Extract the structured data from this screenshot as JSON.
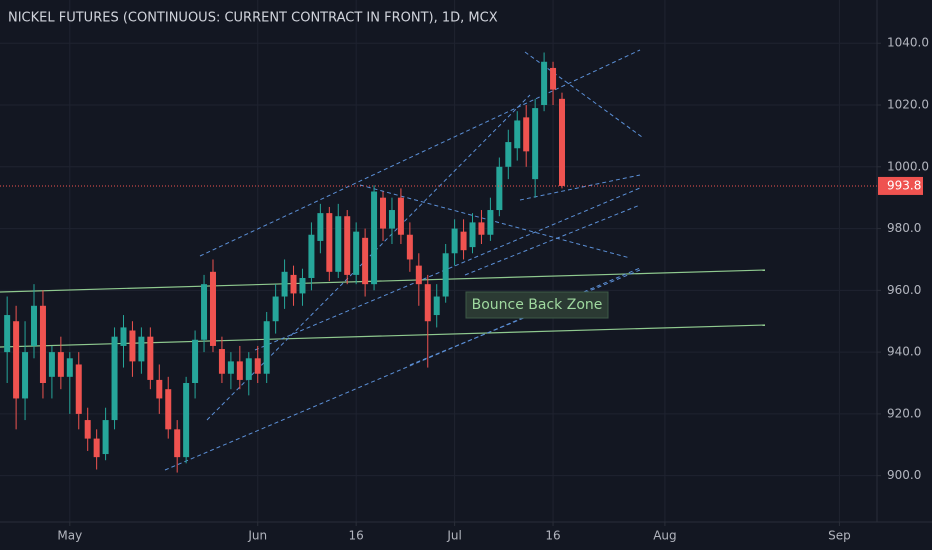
{
  "chart_data": {
    "type": "candlestick",
    "title": "NICKEL FUTURES (CONTINUOUS: CURRENT CONTRACT IN FRONT), 1D, MCX",
    "annotation": "Bounce Back Zone",
    "up_color": "#26a69a",
    "down_color": "#ef5350",
    "x": [
      0,
      1,
      2,
      3,
      4,
      5,
      6,
      7,
      8,
      9,
      10,
      11,
      12,
      13,
      14,
      15,
      16,
      17,
      18,
      19,
      20,
      21,
      22,
      23,
      24,
      25,
      26,
      27,
      28,
      29,
      30,
      31,
      32,
      33,
      34,
      35,
      36,
      37,
      38,
      39,
      40,
      41,
      42,
      43,
      44,
      45,
      46,
      47,
      48,
      49,
      50,
      51,
      52,
      53,
      54,
      55,
      56,
      57,
      58,
      59,
      60,
      61,
      62
    ],
    "open": [
      940,
      950,
      925,
      942,
      955,
      932,
      940,
      932,
      936,
      918,
      912,
      907,
      918,
      942,
      947,
      937,
      945,
      931,
      928,
      915,
      906,
      930,
      944,
      966,
      941,
      933,
      937,
      931,
      938,
      933,
      950,
      958,
      965,
      959,
      964,
      976,
      985,
      966,
      984,
      965,
      977,
      962,
      990,
      980,
      990,
      978,
      968,
      962,
      952,
      958,
      972,
      979,
      974,
      982,
      978,
      986,
      1000,
      1006,
      1016,
      996,
      1020,
      1032,
      1022
    ],
    "high": [
      958,
      955,
      950,
      962,
      960,
      942,
      945,
      940,
      940,
      922,
      915,
      922,
      948,
      952,
      950,
      948,
      948,
      936,
      932,
      918,
      932,
      947,
      965,
      970,
      945,
      940,
      942,
      940,
      942,
      953,
      962,
      970,
      968,
      967,
      982,
      988,
      987,
      988,
      986,
      982,
      980,
      994,
      992,
      990,
      993,
      982,
      972,
      965,
      962,
      975,
      983,
      983,
      985,
      986,
      990,
      1003,
      1012,
      1018,
      1020,
      1022,
      1037,
      1034,
      1024
    ],
    "low": [
      930,
      915,
      918,
      938,
      925,
      925,
      928,
      920,
      915,
      908,
      902,
      905,
      915,
      935,
      932,
      933,
      928,
      920,
      912,
      901,
      904,
      925,
      940,
      940,
      930,
      928,
      928,
      926,
      930,
      930,
      946,
      954,
      955,
      955,
      960,
      972,
      963,
      964,
      962,
      962,
      958,
      960,
      976,
      975,
      975,
      966,
      955,
      935,
      948,
      956,
      968,
      970,
      972,
      975,
      976,
      984,
      996,
      1002,
      1000,
      990,
      1018,
      1020,
      993
    ],
    "close": [
      952,
      925,
      940,
      955,
      930,
      940,
      932,
      938,
      920,
      912,
      906,
      918,
      945,
      948,
      937,
      945,
      931,
      925,
      915,
      906,
      930,
      944,
      962,
      942,
      933,
      937,
      931,
      938,
      933,
      950,
      958,
      966,
      959,
      964,
      978,
      985,
      966,
      984,
      965,
      979,
      962,
      992,
      980,
      986,
      978,
      970,
      962,
      950,
      958,
      972,
      980,
      973,
      982,
      978,
      986,
      1000,
      1008,
      1015,
      1005,
      1019,
      1034,
      1025,
      993.8
    ],
    "last_price": 993.8,
    "last_price_color": "#ef5350",
    "ylim": [
      885,
      1054
    ],
    "yticks": [
      {
        "value": 900,
        "label": "900.0"
      },
      {
        "value": 920,
        "label": "920.0"
      },
      {
        "value": 940,
        "label": "940.0"
      },
      {
        "value": 960,
        "label": "960.0"
      },
      {
        "value": 980,
        "label": "980.0"
      },
      {
        "value": 1000,
        "label": "1000.0"
      },
      {
        "value": 1020,
        "label": "1020.0"
      },
      {
        "value": 1040,
        "label": "1040.0"
      }
    ],
    "xlim": [
      -0.8,
      97.2
    ],
    "xticks": [
      {
        "value": 7,
        "label": "May"
      },
      {
        "value": 28,
        "label": "Jun"
      },
      {
        "value": 39,
        "label": "16"
      },
      {
        "value": 50,
        "label": "Jul"
      },
      {
        "value": 61,
        "label": "16"
      },
      {
        "value": 73.5,
        "label": "Aug"
      },
      {
        "value": 93,
        "label": "Sep"
      }
    ],
    "grid": true
  }
}
